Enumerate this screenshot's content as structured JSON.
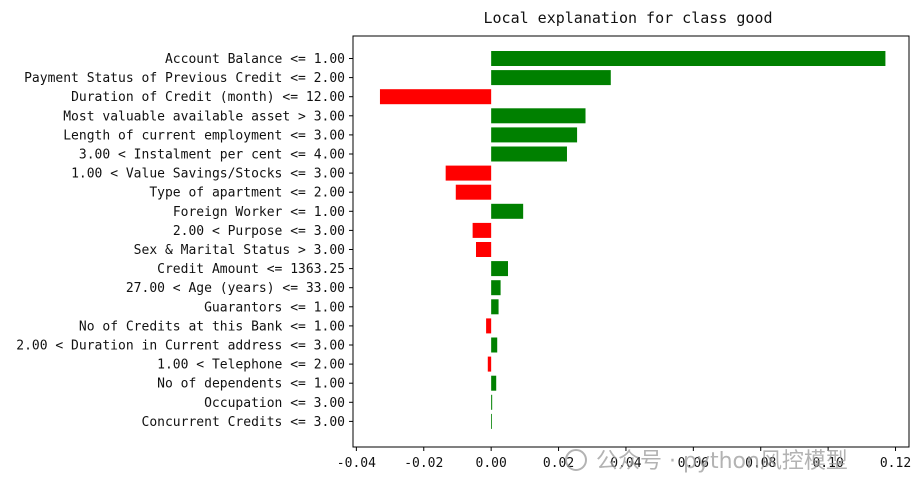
{
  "chart_data": {
    "type": "bar",
    "orientation": "horizontal",
    "title": "Local explanation for class good",
    "xlabel": "",
    "ylabel": "",
    "xlim": [
      -0.041,
      0.124
    ],
    "xticks": [
      -0.04,
      -0.02,
      0.0,
      0.02,
      0.04,
      0.06,
      0.08,
      0.1,
      0.12
    ],
    "xtick_labels": [
      "-0.04",
      "-0.02",
      "0.00",
      "0.02",
      "0.04",
      "0.06",
      "0.08",
      "0.10",
      "0.12"
    ],
    "categories": [
      "Account Balance <= 1.00",
      "Payment Status of Previous Credit <= 2.00",
      "Duration of Credit (month) <= 12.00",
      "Most valuable available asset > 3.00",
      "Length of current employment <= 3.00",
      "3.00 < Instalment per cent <= 4.00",
      "1.00 < Value Savings/Stocks <= 3.00",
      "Type of apartment <= 2.00",
      "Foreign Worker <= 1.00",
      "2.00 < Purpose <= 3.00",
      "Sex & Marital Status > 3.00",
      "Credit Amount <= 1363.25",
      "27.00 < Age (years) <= 33.00",
      "Guarantors <= 1.00",
      "No of Credits at this Bank <= 1.00",
      "2.00 < Duration in Current address <= 3.00",
      "1.00 < Telephone <= 2.00",
      "No of dependents <= 1.00",
      "Occupation <= 3.00",
      "Concurrent Credits <= 3.00"
    ],
    "values": [
      0.117,
      0.0355,
      -0.033,
      0.028,
      0.0255,
      0.0225,
      -0.0135,
      -0.0105,
      0.0095,
      -0.0055,
      -0.0045,
      0.005,
      0.0028,
      0.0022,
      -0.0015,
      0.0018,
      -0.001,
      0.0015,
      0.0003,
      0.0
    ],
    "positive_color": "#008000",
    "negative_color": "#ff0000",
    "grid": false,
    "legend": "none"
  },
  "watermark": "公众号 · python风控模型"
}
